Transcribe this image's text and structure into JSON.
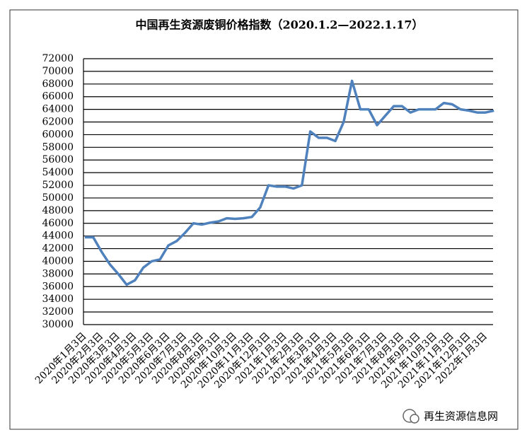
{
  "chart_data": {
    "type": "line",
    "title": "中国再生资源废铜价格指数（2020.1.2—2022.1.17）",
    "watermark": "再生资源信息网",
    "categories": [
      "2020年1月3日",
      null,
      "2020年2月3日",
      null,
      "2020年3月3日",
      null,
      "2020年4月3日",
      null,
      "2020年5月3日",
      null,
      "2020年6月3日",
      null,
      "2020年7月3日",
      null,
      "2020年8月3日",
      null,
      "2020年9月3日",
      null,
      "2020年10月3日",
      null,
      "2020年11月3日",
      null,
      "2020年12月3日",
      null,
      "2021年1月3日",
      null,
      "2021年2月3日",
      null,
      "2021年3月3日",
      null,
      "2021年4月3日",
      null,
      "2021年5月3日",
      null,
      "2021年6月3日",
      null,
      "2021年7月3日",
      null,
      "2021年8月3日",
      null,
      "2021年9月3日",
      null,
      "2021年10月3日",
      null,
      "2021年11月3日",
      null,
      "2021年12月3日",
      null,
      "2022年1月3日",
      null
    ],
    "values": [
      43800,
      43800,
      41500,
      39500,
      38000,
      36300,
      37000,
      39000,
      40000,
      40300,
      42500,
      43200,
      44500,
      46000,
      45800,
      46100,
      46300,
      46800,
      46700,
      46800,
      47000,
      48500,
      52000,
      51800,
      51800,
      51500,
      52000,
      60500,
      59500,
      59500,
      59000,
      62000,
      68500,
      64000,
      64000,
      61500,
      63000,
      64500,
      64500,
      63500,
      64000,
      64000,
      64000,
      65000,
      64800,
      64000,
      63800,
      63500,
      63500,
      63800
    ],
    "color": "#4f81bd",
    "ylim": [
      30000,
      72000
    ],
    "yticks": [
      30000,
      32000,
      34000,
      36000,
      38000,
      40000,
      42000,
      44000,
      46000,
      48000,
      50000,
      52000,
      54000,
      56000,
      58000,
      60000,
      62000,
      64000,
      66000,
      68000,
      70000,
      72000
    ],
    "grid": true
  }
}
